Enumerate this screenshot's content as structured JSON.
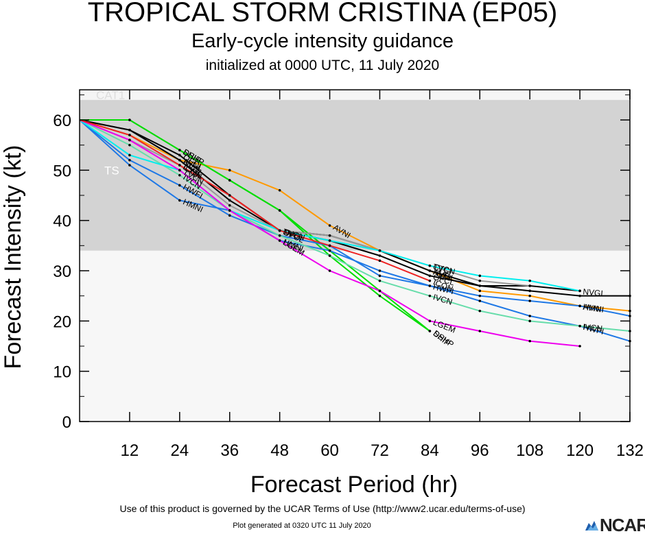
{
  "header": {
    "title": "TROPICAL STORM CRISTINA (EP05)",
    "subtitle": "Early-cycle intensity guidance",
    "initialized": "initialized at 0000 UTC, 11 July 2020"
  },
  "footer": {
    "terms": "Use of this product is governed by the UCAR Terms of Use (http://www2.ucar.edu/terms-of-use)",
    "generated": "Plot generated at 0320 UTC   11 July 2020",
    "logo": "NCAR"
  },
  "chart_data": {
    "type": "line",
    "xlabel": "Forecast Period (hr)",
    "ylabel": "Forecast Intensity (kt)",
    "xlim": [
      0,
      132
    ],
    "ylim": [
      0,
      66
    ],
    "xticks": [
      12,
      24,
      36,
      48,
      60,
      72,
      84,
      96,
      108,
      120,
      132
    ],
    "yticks": [
      0,
      10,
      20,
      30,
      40,
      50,
      60
    ],
    "bands": [
      {
        "label": "TS",
        "from": 34,
        "to": 64,
        "color": "#d3d3d3"
      },
      {
        "label": "CAT1",
        "from": 64,
        "to": 66,
        "color": "#f5f5f5"
      }
    ],
    "below_band_color": "#f7f7f7",
    "series": [
      {
        "name": "AVNI",
        "color": "#ff9900",
        "x": [
          0,
          12,
          24,
          36,
          48,
          60,
          72,
          84,
          96,
          108,
          120,
          132
        ],
        "y": [
          60,
          57,
          52,
          50,
          46,
          39,
          34,
          30,
          26,
          25,
          23,
          22
        ],
        "labels": [
          [
            24,
            "AVNI"
          ],
          [
            60,
            "AVNI"
          ],
          [
            84,
            "AVNI"
          ],
          [
            120,
            "AVNI"
          ]
        ]
      },
      {
        "name": "OFCL",
        "color": "#000000",
        "x": [
          0,
          12,
          24,
          36,
          48,
          60,
          72,
          84,
          96,
          108,
          120,
          132
        ],
        "y": [
          60,
          58,
          53,
          45,
          38,
          36,
          33,
          29,
          27,
          26,
          25,
          25
        ],
        "labels": [
          [
            24,
            "OFCL"
          ],
          [
            48,
            "OFCL"
          ],
          [
            84,
            "OFCL"
          ]
        ]
      },
      {
        "name": "NVGI",
        "color": "#000000",
        "x": [
          0,
          12,
          24,
          36,
          48,
          60,
          72,
          84,
          96,
          108,
          120
        ],
        "y": [
          60,
          58,
          52,
          44,
          38,
          37,
          34,
          30,
          27,
          27,
          26
        ],
        "labels": [
          [
            24,
            "NVGI"
          ],
          [
            48,
            "NVGI"
          ],
          [
            84,
            "NVGI"
          ],
          [
            120,
            "NVGI"
          ]
        ]
      },
      {
        "name": "DSHP",
        "color": "#00dd00",
        "x": [
          0,
          12,
          24,
          36,
          48,
          60,
          72,
          84
        ],
        "y": [
          60,
          60,
          54,
          48,
          42,
          33,
          25,
          18
        ],
        "labels": [
          [
            24,
            "DSHP"
          ],
          [
            84,
            "DSHP"
          ]
        ]
      },
      {
        "name": "SHIP",
        "color": "#00dd00",
        "x": [
          0,
          12,
          24,
          36,
          48,
          60,
          72,
          84
        ],
        "y": [
          60,
          60,
          54,
          48,
          42,
          34,
          26,
          18
        ],
        "labels": [
          [
            24,
            "SHIP"
          ],
          [
            84,
            "SHIP"
          ]
        ]
      },
      {
        "name": "HWFI",
        "color": "#1e78e6",
        "x": [
          0,
          12,
          24,
          36,
          48,
          60,
          72,
          84,
          96,
          108,
          120,
          132
        ],
        "y": [
          60,
          52,
          47,
          41,
          37,
          35,
          29,
          27,
          24,
          21,
          19,
          16
        ],
        "labels": [
          [
            24,
            "HWFI"
          ],
          [
            84,
            "HWFI"
          ],
          [
            120,
            "HWFI"
          ]
        ]
      },
      {
        "name": "HMNI",
        "color": "#1e78e6",
        "x": [
          0,
          12,
          24,
          36,
          48,
          60,
          72,
          84,
          96,
          108,
          120,
          132
        ],
        "y": [
          60,
          51,
          44,
          42,
          36,
          34,
          30,
          27,
          25,
          24,
          23,
          21
        ],
        "labels": [
          [
            24,
            "HMNI"
          ],
          [
            48,
            "HMNI"
          ],
          [
            120,
            "HMNI"
          ]
        ]
      },
      {
        "name": "CTCI",
        "color": "#999999",
        "x": [
          0,
          12,
          24,
          36,
          48,
          60,
          72,
          84,
          96,
          108
        ],
        "y": [
          60,
          56,
          51,
          43,
          38,
          37,
          34,
          31,
          28,
          27
        ],
        "labels": [
          [
            24,
            "CTCI"
          ],
          [
            84,
            "CTCI"
          ]
        ]
      },
      {
        "name": "IVCN",
        "color": "#66ddaa",
        "x": [
          0,
          12,
          24,
          36,
          48,
          60,
          72,
          84,
          96,
          108,
          120,
          132
        ],
        "y": [
          60,
          55,
          49,
          42,
          37,
          33,
          28,
          25,
          22,
          20,
          19,
          18
        ],
        "labels": [
          [
            24,
            "IVCN"
          ],
          [
            84,
            "IVCN"
          ],
          [
            120,
            "IVCN"
          ]
        ]
      },
      {
        "name": "TVCN",
        "color": "#00eeee",
        "x": [
          0,
          12,
          24,
          36,
          48,
          60,
          72,
          84,
          96,
          108,
          120
        ],
        "y": [
          60,
          53,
          50,
          42,
          38,
          36,
          34,
          31,
          29,
          28,
          26
        ],
        "labels": [
          [
            24,
            "TVCN"
          ],
          [
            48,
            "TVCN"
          ],
          [
            84,
            "TVCN"
          ]
        ]
      },
      {
        "name": "LGEM",
        "color": "#ee00ee",
        "x": [
          0,
          12,
          24,
          36,
          48,
          60,
          72,
          84,
          96,
          108,
          120
        ],
        "y": [
          60,
          56,
          50,
          42,
          36,
          30,
          26,
          20,
          18,
          16,
          15
        ],
        "labels": [
          [
            48,
            "LGEM"
          ],
          [
            84,
            "LGEM"
          ]
        ]
      },
      {
        "name": "ICON",
        "color": "#ee2222",
        "x": [
          0,
          12,
          24,
          36,
          48,
          60,
          72,
          84
        ],
        "y": [
          60,
          57,
          51,
          45,
          38,
          35,
          32,
          28
        ],
        "labels": [
          [
            24,
            "ICON"
          ],
          [
            84,
            "ICON"
          ]
        ]
      }
    ]
  }
}
